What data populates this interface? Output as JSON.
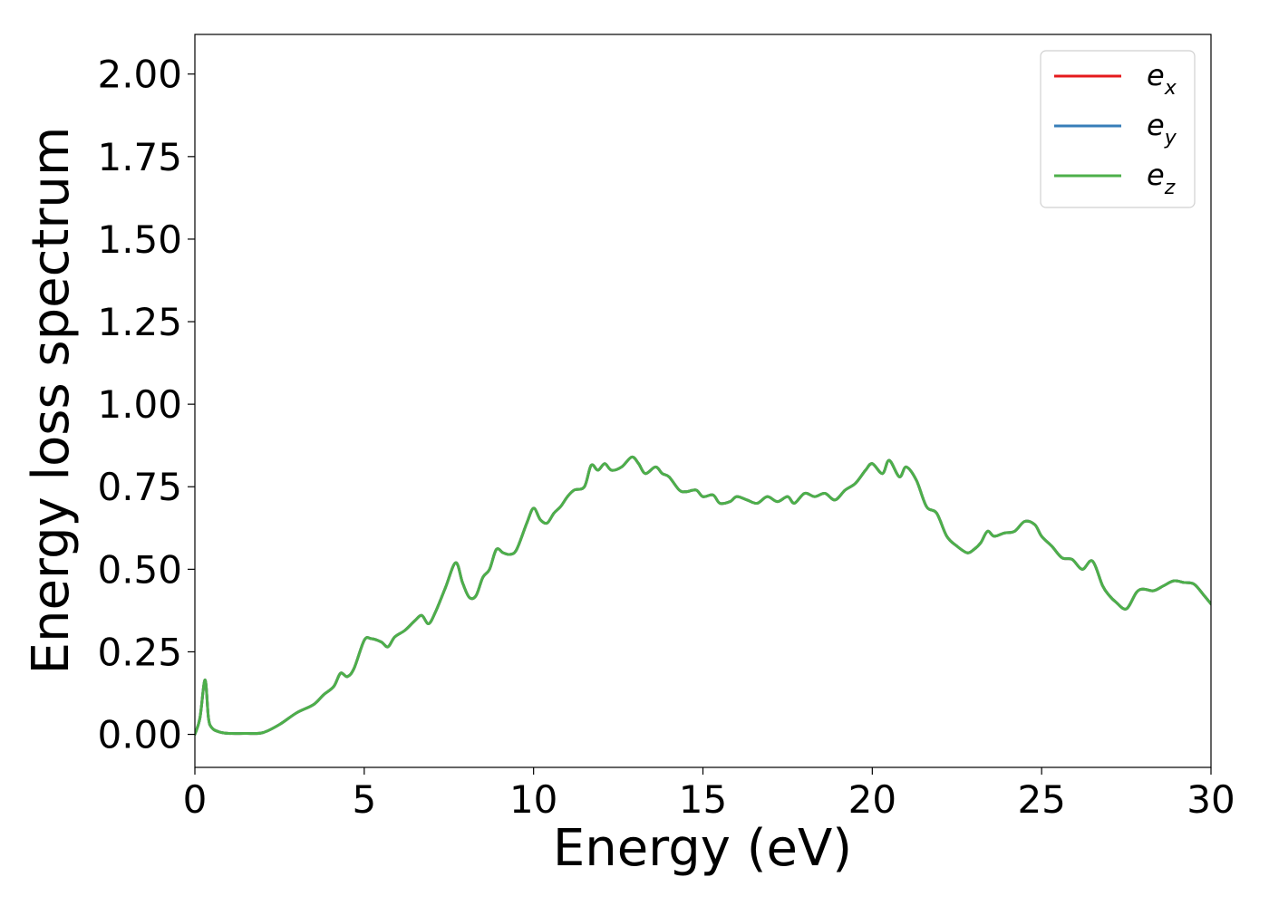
{
  "chart_data": {
    "type": "line",
    "xlabel": "Energy (eV)",
    "ylabel": "Energy loss spectrum",
    "xlim": [
      0,
      30
    ],
    "ylim": [
      -0.1,
      2.12
    ],
    "xticks": [
      0,
      5,
      10,
      15,
      20,
      25,
      30
    ],
    "xtick_labels": [
      "0",
      "5",
      "10",
      "15",
      "20",
      "25",
      "30"
    ],
    "yticks": [
      0,
      0.25,
      0.5,
      0.75,
      1.0,
      1.25,
      1.5,
      1.75,
      2.0
    ],
    "ytick_labels": [
      "0.00",
      "0.25",
      "0.50",
      "0.75",
      "1.00",
      "1.25",
      "1.50",
      "1.75",
      "2.00"
    ],
    "grid": false,
    "legend_position": "top-right",
    "legend": [
      {
        "base": "e",
        "sub": "x",
        "color": "#e41a1c"
      },
      {
        "base": "e",
        "sub": "y",
        "color": "#377eb8"
      },
      {
        "base": "e",
        "sub": "z",
        "color": "#4daf4a"
      }
    ],
    "x": [
      0,
      0.15,
      0.3,
      0.4,
      0.5,
      0.7,
      1.0,
      1.5,
      2.0,
      2.5,
      3.0,
      3.5,
      3.8,
      4.1,
      4.3,
      4.5,
      4.7,
      5.0,
      5.2,
      5.5,
      5.7,
      5.9,
      6.2,
      6.5,
      6.7,
      6.9,
      7.1,
      7.4,
      7.7,
      7.9,
      8.1,
      8.3,
      8.5,
      8.7,
      8.9,
      9.1,
      9.3,
      9.5,
      9.8,
      10.0,
      10.2,
      10.4,
      10.6,
      10.8,
      11.0,
      11.2,
      11.5,
      11.7,
      11.9,
      12.1,
      12.3,
      12.6,
      12.9,
      13.1,
      13.3,
      13.6,
      13.8,
      14.0,
      14.3,
      14.5,
      14.8,
      15.0,
      15.3,
      15.5,
      15.8,
      16.0,
      16.3,
      16.6,
      16.9,
      17.2,
      17.5,
      17.7,
      18.0,
      18.3,
      18.6,
      18.9,
      19.2,
      19.5,
      19.8,
      20.0,
      20.3,
      20.5,
      20.8,
      21.0,
      21.3,
      21.6,
      21.9,
      22.2,
      22.5,
      22.8,
      23.0,
      23.2,
      23.4,
      23.6,
      23.9,
      24.2,
      24.5,
      24.8,
      25.0,
      25.3,
      25.6,
      25.9,
      26.2,
      26.5,
      26.8,
      27.0,
      27.2,
      27.5,
      27.8,
      28.0,
      28.3,
      28.6,
      28.9,
      29.2,
      29.5,
      29.8,
      30.0
    ],
    "series": [
      {
        "name": "e_x",
        "color": "#e41a1c",
        "values": [
          0.0,
          0.05,
          0.165,
          0.05,
          0.02,
          0.008,
          0.003,
          0.003,
          0.005,
          0.03,
          0.065,
          0.09,
          0.12,
          0.145,
          0.185,
          0.175,
          0.2,
          0.285,
          0.29,
          0.28,
          0.265,
          0.295,
          0.315,
          0.345,
          0.36,
          0.335,
          0.37,
          0.445,
          0.52,
          0.46,
          0.415,
          0.42,
          0.475,
          0.5,
          0.56,
          0.55,
          0.545,
          0.56,
          0.64,
          0.685,
          0.65,
          0.64,
          0.67,
          0.69,
          0.72,
          0.74,
          0.75,
          0.815,
          0.8,
          0.82,
          0.8,
          0.81,
          0.84,
          0.82,
          0.79,
          0.81,
          0.79,
          0.78,
          0.74,
          0.735,
          0.74,
          0.72,
          0.725,
          0.7,
          0.705,
          0.72,
          0.71,
          0.7,
          0.72,
          0.705,
          0.72,
          0.7,
          0.73,
          0.72,
          0.73,
          0.71,
          0.74,
          0.76,
          0.8,
          0.82,
          0.79,
          0.83,
          0.78,
          0.81,
          0.77,
          0.69,
          0.67,
          0.6,
          0.57,
          0.55,
          0.56,
          0.58,
          0.615,
          0.6,
          0.61,
          0.615,
          0.645,
          0.635,
          0.6,
          0.57,
          0.535,
          0.53,
          0.5,
          0.525,
          0.45,
          0.42,
          0.4,
          0.38,
          0.43,
          0.44,
          0.435,
          0.45,
          0.465,
          0.46,
          0.455,
          0.42,
          0.395
        ]
      },
      {
        "name": "e_y",
        "color": "#377eb8",
        "values": [
          0.0,
          0.05,
          0.165,
          0.05,
          0.02,
          0.008,
          0.003,
          0.003,
          0.005,
          0.03,
          0.065,
          0.09,
          0.12,
          0.145,
          0.185,
          0.175,
          0.2,
          0.285,
          0.29,
          0.28,
          0.265,
          0.295,
          0.315,
          0.345,
          0.36,
          0.335,
          0.37,
          0.445,
          0.52,
          0.46,
          0.415,
          0.42,
          0.475,
          0.5,
          0.56,
          0.55,
          0.545,
          0.56,
          0.64,
          0.685,
          0.65,
          0.64,
          0.67,
          0.69,
          0.72,
          0.74,
          0.75,
          0.815,
          0.8,
          0.82,
          0.8,
          0.81,
          0.84,
          0.82,
          0.79,
          0.81,
          0.79,
          0.78,
          0.74,
          0.735,
          0.74,
          0.72,
          0.725,
          0.7,
          0.705,
          0.72,
          0.71,
          0.7,
          0.72,
          0.705,
          0.72,
          0.7,
          0.73,
          0.72,
          0.73,
          0.71,
          0.74,
          0.76,
          0.8,
          0.82,
          0.79,
          0.83,
          0.78,
          0.81,
          0.77,
          0.69,
          0.67,
          0.6,
          0.57,
          0.55,
          0.56,
          0.58,
          0.615,
          0.6,
          0.61,
          0.615,
          0.645,
          0.635,
          0.6,
          0.57,
          0.535,
          0.53,
          0.5,
          0.525,
          0.45,
          0.42,
          0.4,
          0.38,
          0.43,
          0.44,
          0.435,
          0.45,
          0.465,
          0.46,
          0.455,
          0.42,
          0.395
        ]
      },
      {
        "name": "e_z",
        "color": "#4daf4a",
        "values": [
          0.0,
          0.05,
          0.165,
          0.05,
          0.02,
          0.008,
          0.003,
          0.003,
          0.005,
          0.03,
          0.065,
          0.09,
          0.12,
          0.145,
          0.185,
          0.175,
          0.2,
          0.285,
          0.29,
          0.28,
          0.265,
          0.295,
          0.315,
          0.345,
          0.36,
          0.335,
          0.37,
          0.445,
          0.52,
          0.46,
          0.415,
          0.42,
          0.475,
          0.5,
          0.56,
          0.55,
          0.545,
          0.56,
          0.64,
          0.685,
          0.65,
          0.64,
          0.67,
          0.69,
          0.72,
          0.74,
          0.75,
          0.815,
          0.8,
          0.82,
          0.8,
          0.81,
          0.84,
          0.82,
          0.79,
          0.81,
          0.79,
          0.78,
          0.74,
          0.735,
          0.74,
          0.72,
          0.725,
          0.7,
          0.705,
          0.72,
          0.71,
          0.7,
          0.72,
          0.705,
          0.72,
          0.7,
          0.73,
          0.72,
          0.73,
          0.71,
          0.74,
          0.76,
          0.8,
          0.82,
          0.79,
          0.83,
          0.78,
          0.81,
          0.77,
          0.69,
          0.67,
          0.6,
          0.57,
          0.55,
          0.56,
          0.58,
          0.615,
          0.6,
          0.61,
          0.615,
          0.645,
          0.635,
          0.6,
          0.57,
          0.535,
          0.53,
          0.5,
          0.525,
          0.45,
          0.42,
          0.4,
          0.38,
          0.43,
          0.44,
          0.435,
          0.45,
          0.465,
          0.46,
          0.455,
          0.42,
          0.395
        ]
      }
    ]
  }
}
